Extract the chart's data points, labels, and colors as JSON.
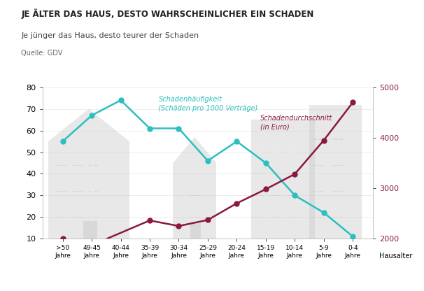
{
  "categories": [
    ">50\nJahre",
    "49-45\nJahre",
    "40-44\nJahre",
    "35-39\nJahre",
    "30-34\nJahre",
    "25-29\nJahre",
    "20-24\nJahre",
    "15-19\nJahre",
    "10-14\nJahre",
    "5-9\nJahre",
    "0-4\nJahre"
  ],
  "haeufigkeit": [
    55,
    67,
    74,
    61,
    61,
    46,
    55,
    45,
    30,
    22,
    11
  ],
  "durchschnitt_euro": [
    2000,
    1870,
    null,
    2360,
    2250,
    2370,
    2700,
    2980,
    3280,
    3950,
    4700
  ],
  "cyan_color": "#2BBFBF",
  "red_color": "#8B1842",
  "bg_color": "#FFFFFF",
  "building_color": "#CCCCCC",
  "title": "JE ÄLTER DAS HAUS, DESTO WAHRSCHEINLICHER EIN SCHADEN",
  "subtitle": "Je jünger das Haus, desto teurer der Schaden",
  "source": "Quelle: GDV",
  "xlabel": "Hausalter",
  "ylim_left": [
    10,
    80
  ],
  "ylim_right": [
    2000,
    5000
  ],
  "yticks_left": [
    10,
    20,
    30,
    40,
    50,
    60,
    70,
    80
  ],
  "yticks_right": [
    2000,
    3000,
    4000,
    5000
  ],
  "annotation_cyan": "Schadenhäufigkeit\n(Schäden pro 1000 Verträge)",
  "annotation_red": "Schadendurchschnitt\n(in Euro)",
  "figsize": [
    6.06,
    4.16
  ],
  "dpi": 100
}
